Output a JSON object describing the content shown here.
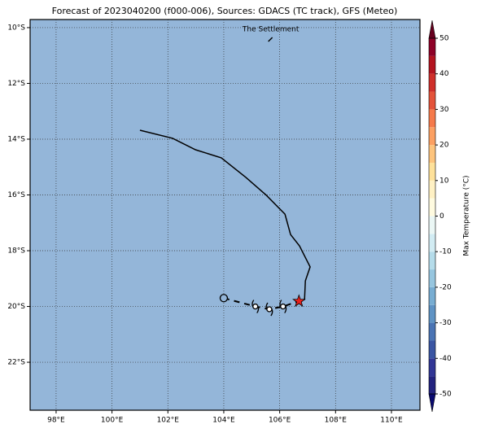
{
  "title": "Forecast of 2023040200 (f000-006), Sources: GDACS (TC track), GFS (Meteo)",
  "map": {
    "lonlim": [
      97.07,
      111.02
    ],
    "latlim": [
      -23.72,
      -9.71
    ],
    "ocean_color": "#94b6d9",
    "xticks": [
      {
        "value": 98,
        "label": "98°E"
      },
      {
        "value": 100,
        "label": "100°E"
      },
      {
        "value": 102,
        "label": "102°E"
      },
      {
        "value": 104,
        "label": "104°E"
      },
      {
        "value": 106,
        "label": "106°E"
      },
      {
        "value": 108,
        "label": "108°E"
      },
      {
        "value": 110,
        "label": "110°E"
      }
    ],
    "yticks": [
      {
        "value": -10,
        "label": "10°S"
      },
      {
        "value": -12,
        "label": "12°S"
      },
      {
        "value": -14,
        "label": "14°S"
      },
      {
        "value": -16,
        "label": "16°S"
      },
      {
        "value": -18,
        "label": "18°S"
      },
      {
        "value": -20,
        "label": "20°S"
      },
      {
        "value": -22,
        "label": "22°S"
      }
    ]
  },
  "place": {
    "name": "The Settlement",
    "lon": 105.68,
    "lat": -10.41
  },
  "track": {
    "lon": [
      101.0,
      102.17,
      102.99,
      103.91,
      104.79,
      105.52,
      106.19,
      106.39,
      106.71,
      107.09,
      106.92,
      106.89,
      106.69
    ],
    "lat": [
      -13.68,
      -13.97,
      -14.38,
      -14.67,
      -15.37,
      -16.01,
      -16.69,
      -17.42,
      -17.83,
      -18.58,
      -19.08,
      -19.75,
      -19.81
    ]
  },
  "forecast": {
    "lon": [
      104.0,
      105.13,
      105.63,
      106.12,
      106.69
    ],
    "lat": [
      -19.7,
      -20.0,
      -20.1,
      -20.0,
      -19.81
    ]
  },
  "colorbar": {
    "label": "Max Temperature (°C)",
    "levels": [
      -50,
      -45,
      -40,
      -35,
      -30,
      -25,
      -20,
      -15,
      -10,
      -5,
      0,
      5,
      10,
      15,
      20,
      25,
      30,
      35,
      40,
      45,
      50
    ],
    "colors": [
      "#23237f",
      "#313695",
      "#3a55a3",
      "#4a74b4",
      "#5f93c4",
      "#78add2",
      "#97c6df",
      "#b5dcea",
      "#d2ecf3",
      "#ebf7f5",
      "#fffbe0",
      "#fff1c4",
      "#fee19a",
      "#fdc47d",
      "#fca062",
      "#f57a4b",
      "#e4533a",
      "#cf2f2a",
      "#b3131f",
      "#8e0127"
    ],
    "under_color": "#0a0a70",
    "over_color": "#67001f",
    "ticks": [
      -50,
      -40,
      -30,
      -20,
      -10,
      0,
      10,
      20,
      30,
      40,
      50
    ]
  }
}
